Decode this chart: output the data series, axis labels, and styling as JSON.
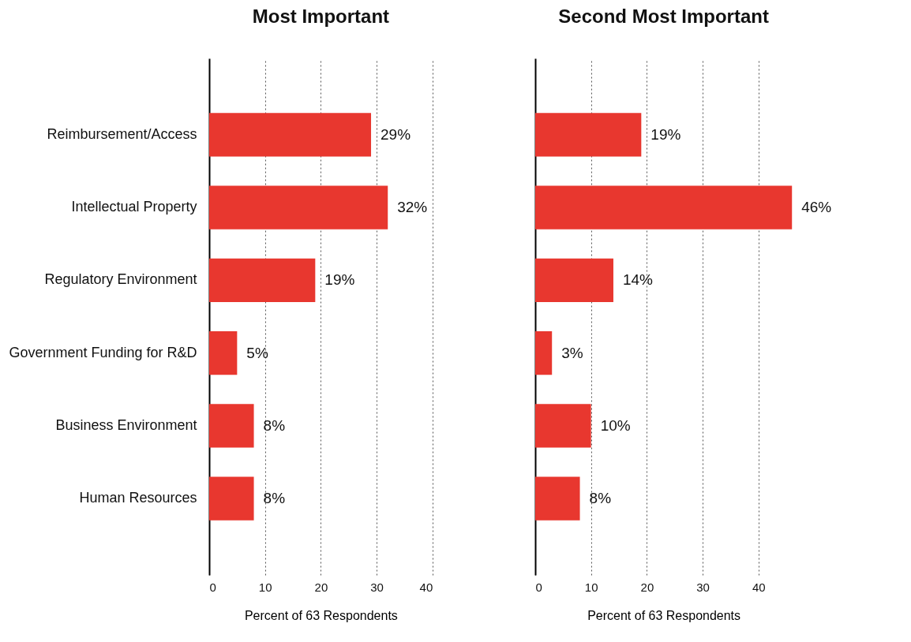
{
  "chart_data": [
    {
      "type": "bar",
      "orientation": "horizontal",
      "title": "Most Important",
      "xlabel": "Percent of 63 Respondents",
      "categories": [
        "Reimbursement/Access",
        "Intellectual Property",
        "Regulatory Environment",
        "Government Funding for R&D",
        "Business Environment",
        "Human Resources"
      ],
      "series": [
        {
          "color": "#e8372f",
          "values": [
            29,
            32,
            19,
            5,
            8,
            8
          ],
          "value_labels": [
            "29%",
            "32%",
            "19%",
            "5%",
            "8%",
            "8%"
          ]
        }
      ],
      "xlim": [
        0,
        40
      ],
      "xticks": [
        0,
        10,
        20,
        30,
        40
      ],
      "grid": "x"
    },
    {
      "type": "bar",
      "orientation": "horizontal",
      "title": "Second Most Important",
      "xlabel": "Percent of 63 Respondents",
      "categories": [
        null,
        null,
        null,
        null,
        null,
        null
      ],
      "series": [
        {
          "color": "#e8372f",
          "values": [
            19,
            46,
            14,
            3,
            10,
            8
          ],
          "value_labels": [
            "19%",
            "46%",
            "14%",
            "3%",
            "10%",
            "8%"
          ]
        }
      ],
      "xlim": [
        0,
        46
      ],
      "xticks": [
        0,
        10,
        20,
        30,
        40
      ],
      "grid": "x",
      "tick_labels": "x"
    }
  ]
}
